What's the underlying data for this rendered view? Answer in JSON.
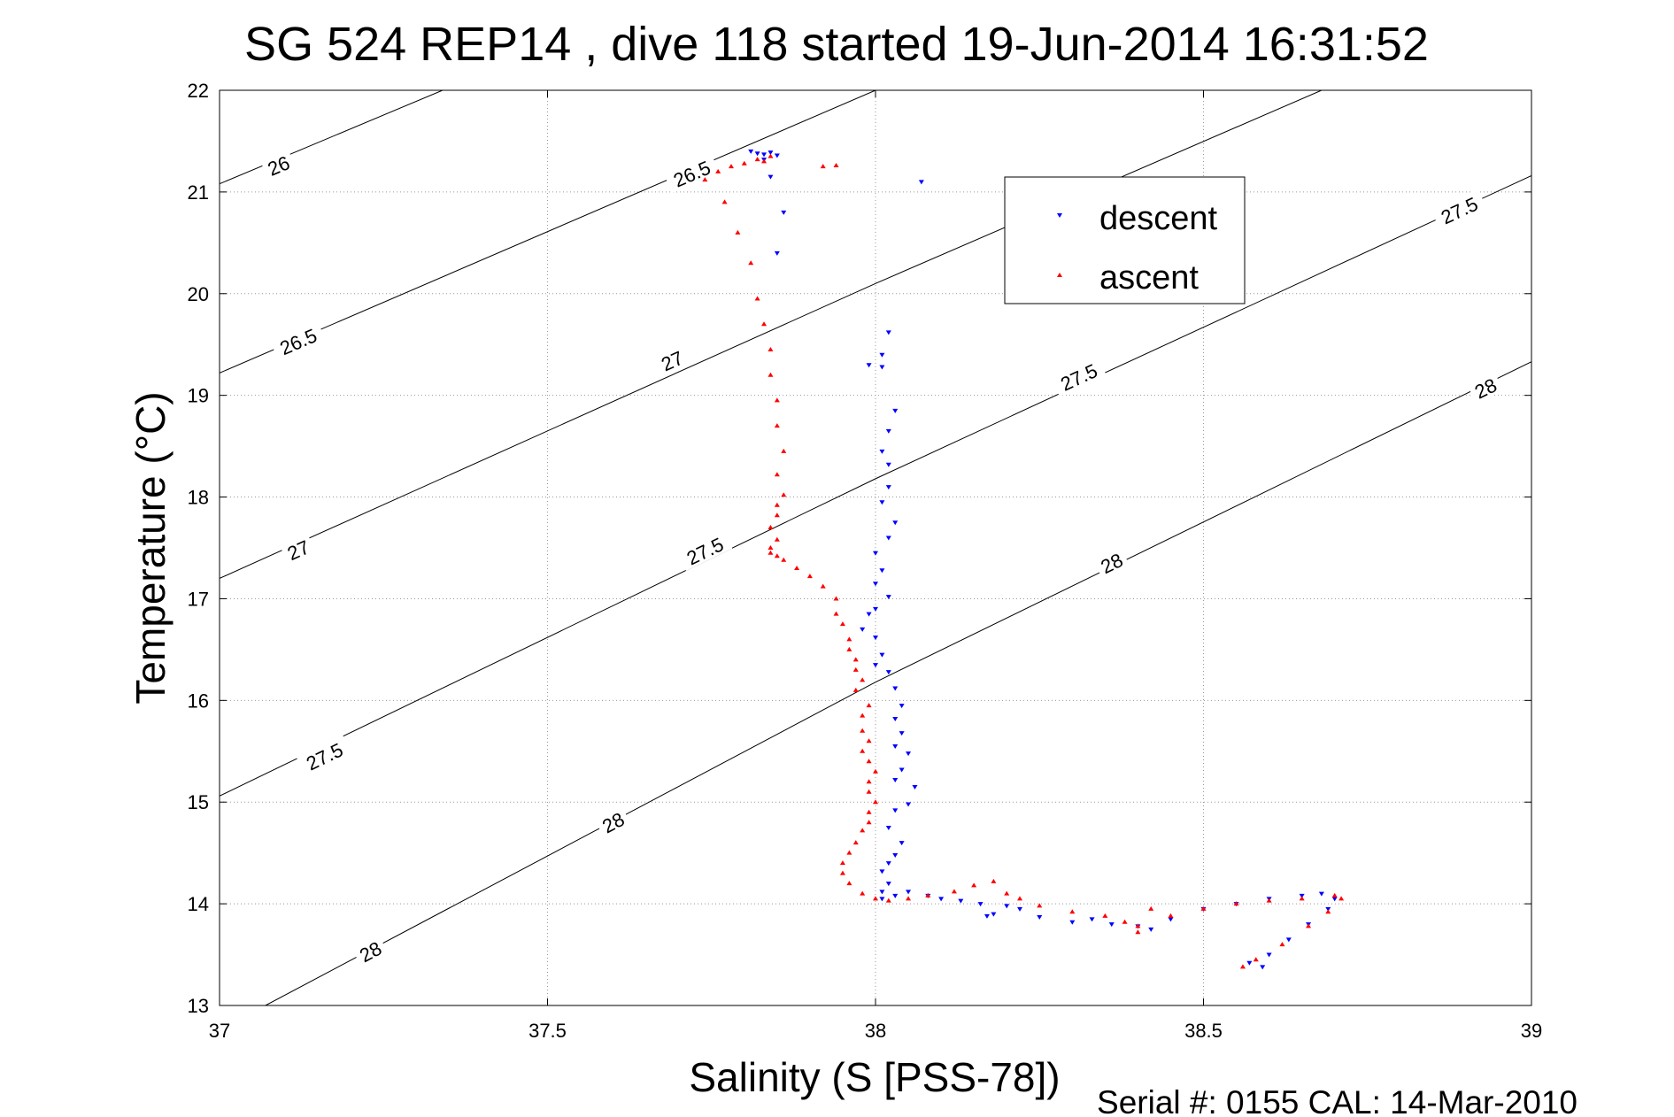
{
  "chart_data": {
    "type": "scatter",
    "title": "SG 524   REP14  , dive 118 started 19-Jun-2014 16:31:52",
    "xlabel": "Salinity (S [PSS-78])",
    "ylabel": "Temperature (°C)",
    "footer": "Serial #: 0155  CAL: 14-Mar-2010",
    "xlim": [
      37,
      39
    ],
    "ylim": [
      13,
      22
    ],
    "x_ticks": [
      37,
      37.5,
      38,
      38.5,
      39
    ],
    "x_tick_labels": [
      "37",
      "37.5",
      "38",
      "38.5",
      "39"
    ],
    "y_ticks": [
      13,
      14,
      15,
      16,
      17,
      18,
      19,
      20,
      21,
      22
    ],
    "y_tick_labels": [
      "13",
      "14",
      "15",
      "16",
      "17",
      "18",
      "19",
      "20",
      "21",
      "22"
    ],
    "grid": true,
    "legend_position": "top-right",
    "density_contours": [
      {
        "level": "26",
        "points": [
          [
            37.0,
            21.08
          ],
          [
            37.34,
            22.0
          ]
        ],
        "labels": [
          [
            37.09,
            21.26
          ]
        ]
      },
      {
        "level": "26.5",
        "points": [
          [
            37.0,
            19.22
          ],
          [
            38.0,
            22.0
          ]
        ],
        "labels": [
          [
            37.12,
            19.53
          ],
          [
            37.72,
            21.18
          ]
        ]
      },
      {
        "level": "27",
        "points": [
          [
            37.0,
            17.2
          ],
          [
            38.0,
            20.1
          ],
          [
            38.68,
            22.0
          ]
        ],
        "labels": [
          [
            37.12,
            17.48
          ],
          [
            37.69,
            19.34
          ]
        ]
      },
      {
        "level": "27.5",
        "points": [
          [
            37.0,
            15.06
          ],
          [
            38.0,
            18.18
          ],
          [
            39.0,
            21.16
          ]
        ],
        "labels": [
          [
            37.16,
            15.45
          ],
          [
            37.74,
            17.47
          ],
          [
            38.31,
            19.18
          ],
          [
            38.89,
            20.82
          ]
        ]
      },
      {
        "level": "28",
        "points": [
          [
            37.07,
            13.0
          ],
          [
            38.0,
            16.18
          ],
          [
            39.0,
            19.33
          ]
        ],
        "labels": [
          [
            37.6,
            14.8
          ],
          [
            38.36,
            17.35
          ],
          [
            38.93,
            19.07
          ],
          [
            37.23,
            13.53
          ]
        ]
      }
    ],
    "series": [
      {
        "name": "descent",
        "color": "#0000ff",
        "marker": "triangle-down",
        "x": [
          37.81,
          37.82,
          37.83,
          37.84,
          37.83,
          37.85,
          37.84,
          37.86,
          38.07,
          37.85,
          38.01,
          37.99,
          38.02,
          38.01,
          38.03,
          38.02,
          38.01,
          38.02,
          38.02,
          38.01,
          38.03,
          38.02,
          38.0,
          38.01,
          38.0,
          38.02,
          38.0,
          37.99,
          37.98,
          38.0,
          38.01,
          38.0,
          38.02,
          38.03,
          38.04,
          38.03,
          38.04,
          38.03,
          38.05,
          38.04,
          38.03,
          38.06,
          38.03,
          38.02,
          38.05,
          38.04,
          38.03,
          38.02,
          38.01,
          38.02,
          38.01,
          38.01,
          38.03,
          38.05,
          38.08,
          38.1,
          38.13,
          38.16,
          38.2,
          38.22,
          38.17,
          38.18,
          38.25,
          38.3,
          38.33,
          38.36,
          38.4,
          38.42,
          38.45,
          38.5,
          38.55,
          38.6,
          38.65,
          38.68,
          38.7,
          38.69,
          38.66,
          38.63,
          38.6,
          38.57,
          38.59
        ],
        "y": [
          21.4,
          21.38,
          21.37,
          21.39,
          21.32,
          21.36,
          21.15,
          20.8,
          21.1,
          20.4,
          19.4,
          19.3,
          19.62,
          19.28,
          18.85,
          18.65,
          18.45,
          18.32,
          18.1,
          17.95,
          17.75,
          17.6,
          17.45,
          17.28,
          17.15,
          17.02,
          16.9,
          16.85,
          16.7,
          16.62,
          16.45,
          16.35,
          16.28,
          16.12,
          15.95,
          15.82,
          15.68,
          15.55,
          15.48,
          15.32,
          15.22,
          15.15,
          14.92,
          14.75,
          14.98,
          14.6,
          14.48,
          14.4,
          14.32,
          14.2,
          14.12,
          14.05,
          14.08,
          14.12,
          14.08,
          14.05,
          14.03,
          14.0,
          13.98,
          13.95,
          13.88,
          13.9,
          13.87,
          13.82,
          13.85,
          13.8,
          13.78,
          13.75,
          13.85,
          13.95,
          14.0,
          14.05,
          14.08,
          14.1,
          14.05,
          13.95,
          13.8,
          13.65,
          13.5,
          13.42,
          13.38
        ]
      },
      {
        "name": "ascent",
        "color": "#ff0000",
        "marker": "triangle-up",
        "x": [
          37.84,
          37.82,
          37.83,
          37.8,
          37.78,
          37.76,
          37.74,
          37.77,
          37.79,
          37.92,
          37.94,
          37.81,
          37.82,
          37.83,
          37.84,
          37.84,
          37.85,
          37.85,
          37.86,
          37.85,
          37.86,
          37.85,
          37.85,
          37.84,
          37.85,
          37.84,
          37.84,
          37.85,
          37.86,
          37.88,
          37.9,
          37.92,
          37.94,
          37.94,
          37.95,
          37.96,
          37.96,
          37.97,
          37.97,
          37.98,
          37.97,
          37.99,
          37.98,
          37.98,
          37.99,
          37.98,
          37.99,
          38.0,
          37.99,
          37.99,
          38.0,
          37.99,
          37.99,
          37.98,
          37.97,
          37.96,
          37.95,
          37.95,
          37.96,
          37.98,
          38.0,
          38.02,
          38.05,
          38.08,
          38.12,
          38.15,
          38.18,
          38.2,
          38.22,
          38.25,
          38.3,
          38.35,
          38.38,
          38.4,
          38.42,
          38.4,
          38.45,
          38.5,
          38.55,
          38.6,
          38.65,
          38.7,
          38.71,
          38.69,
          38.66,
          38.62,
          38.58,
          38.56
        ],
        "y": [
          21.35,
          21.32,
          21.3,
          21.28,
          21.25,
          21.2,
          21.12,
          20.9,
          20.6,
          21.25,
          21.26,
          20.3,
          19.95,
          19.7,
          19.45,
          19.2,
          18.95,
          18.7,
          18.45,
          18.22,
          18.02,
          17.92,
          17.82,
          17.7,
          17.58,
          17.5,
          17.45,
          17.42,
          17.38,
          17.3,
          17.22,
          17.12,
          17.0,
          16.85,
          16.75,
          16.6,
          16.5,
          16.4,
          16.3,
          16.2,
          16.1,
          15.95,
          15.85,
          15.7,
          15.6,
          15.5,
          15.4,
          15.3,
          15.2,
          15.1,
          15.0,
          14.9,
          14.8,
          14.72,
          14.6,
          14.5,
          14.4,
          14.3,
          14.2,
          14.1,
          14.05,
          14.03,
          14.05,
          14.08,
          14.12,
          14.18,
          14.22,
          14.1,
          14.05,
          13.98,
          13.92,
          13.88,
          13.82,
          13.78,
          13.95,
          13.72,
          13.88,
          13.95,
          14.0,
          14.03,
          14.05,
          14.08,
          14.05,
          13.92,
          13.78,
          13.6,
          13.45,
          13.38
        ]
      }
    ]
  }
}
